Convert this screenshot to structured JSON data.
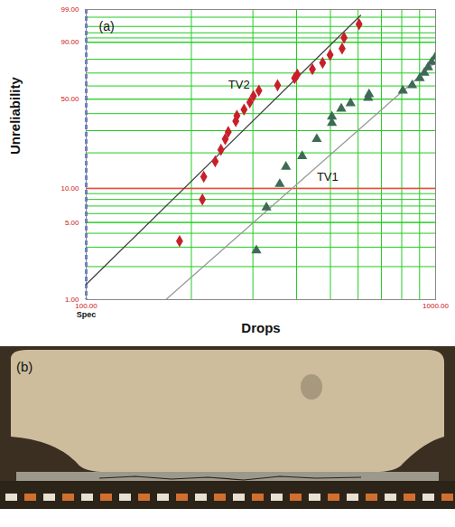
{
  "chart_data": {
    "type": "scatter",
    "panel": "(a)",
    "x_label": "Drops",
    "y_label": "Unreliability",
    "log": "x",
    "grid": true,
    "xlim": [
      100,
      1000
    ],
    "xticks": [
      {
        "value": 100,
        "label": "100.00"
      },
      {
        "value": 1000,
        "label": "1000.00"
      }
    ],
    "ylim": [
      1,
      99
    ],
    "yticks": [
      {
        "value": 1,
        "label": "1.00"
      },
      {
        "value": 5,
        "label": "5.00"
      },
      {
        "value": 10,
        "label": "10.00"
      },
      {
        "value": 50,
        "label": "50.00"
      },
      {
        "value": 90,
        "label": "90.00"
      },
      {
        "value": 99,
        "label": "99.00"
      }
    ],
    "threshold": {
      "y": 10,
      "color": "#ff4040"
    },
    "spec": {
      "label": "Spec",
      "x": 100,
      "color": "#3355cc",
      "line_style": "dashed"
    },
    "series": [
      {
        "name": "TV2",
        "color": "#c8202a",
        "marker": "diamond",
        "x": [
          185,
          215,
          217,
          234,
          243,
          250,
          255,
          268,
          270,
          283,
          294,
          301,
          312,
          353,
          395,
          402,
          444,
          475,
          499,
          540,
          547,
          604
        ],
        "values": [
          3.4,
          8.0,
          12.6,
          17.0,
          21.2,
          25.8,
          29.3,
          35.3,
          38.6,
          42.7,
          47.7,
          52.3,
          56.4,
          60.5,
          66.1,
          68.8,
          72.9,
          77.5,
          82.9,
          86.7,
          92.1,
          96.6
        ],
        "label_at": [
          255,
          61.2
        ],
        "fit": {
          "x": [
            100,
            610
          ],
          "values": [
            1.38,
            98.3
          ],
          "color": "#444444"
        }
      },
      {
        "name": "TV1",
        "color": "#3d6b55",
        "marker": "triangle",
        "x": [
          307,
          328,
          358,
          373,
          415,
          457,
          505,
          505,
          537,
          571,
          641,
          645,
          806,
          857,
          901,
          929,
          952,
          975,
          1000
        ],
        "values": [
          2.8,
          6.8,
          10.9,
          15.3,
          18.8,
          25.8,
          34.2,
          38.1,
          43.3,
          47.1,
          51.0,
          53.6,
          56.4,
          60.5,
          66.1,
          70.2,
          74.3,
          78.1,
          81.8
        ],
        "label_at": [
          457,
          12.6
        ],
        "fit": {
          "x": [
            169,
            1000
          ],
          "values": [
            1,
            78.1
          ],
          "color": "#999999"
        }
      }
    ]
  },
  "image_panel": {
    "label": "(b)"
  }
}
